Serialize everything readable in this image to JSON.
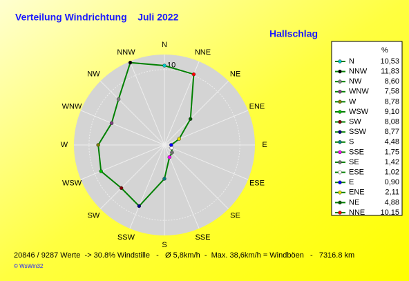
{
  "chart_data": {
    "type": "radar",
    "title": "Verteilung Windrichtung    Juli 2022",
    "subtitle": "Hallschlag",
    "legend_header": "%",
    "categories": [
      "N",
      "NNW",
      "NW",
      "WNW",
      "W",
      "WSW",
      "SW",
      "SSW",
      "S",
      "SSE",
      "SE",
      "ESE",
      "E",
      "ENE",
      "NE",
      "NNE"
    ],
    "values": [
      10.53,
      11.83,
      8.6,
      7.58,
      8.78,
      9.1,
      8.08,
      8.77,
      4.48,
      1.75,
      1.42,
      1.02,
      0.9,
      2.11,
      4.88,
      10.15
    ],
    "value_labels": [
      "10,53",
      "11,83",
      "8,60",
      "7,58",
      "8,78",
      "9,10",
      "8,08",
      "8,77",
      "4,48",
      "1,75",
      "1,42",
      "1,02",
      "0,90",
      "2,11",
      "4,88",
      "10,15"
    ],
    "colors": [
      "#00c8c8",
      "#000000",
      "#808080",
      "#804080",
      "#808000",
      "#00c000",
      "#800000",
      "#000080",
      "#008080",
      "#ff00ff",
      "#707070",
      "#ffffff",
      "#0000ff",
      "#e0e000",
      "#006000",
      "#ff0000"
    ],
    "line_color": "#008000",
    "rlim": [
      0,
      12
    ],
    "rticks": [
      10
    ],
    "footer": "20846 / 9287 Werte  -> 30.8% Windstille   -   Ø 5,8km/h  -  Max. 38,6km/h = Windböen   -   7316.8 km",
    "credit": "© WsWin32"
  }
}
